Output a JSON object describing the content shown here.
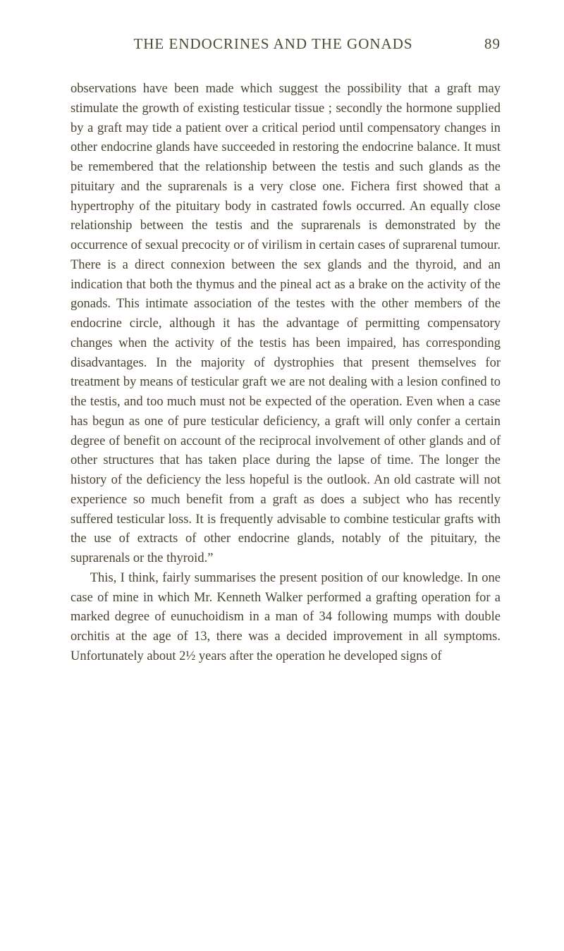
{
  "header": {
    "title": "THE ENDOCRINES AND THE GONADS",
    "page_number": "89"
  },
  "body": {
    "paragraph1": "observations have been made which suggest the possibility that a graft may stimulate the growth of existing testicular tissue ; secondly the hormone supplied by a graft may tide a patient over a critical period until compensatory changes in other endocrine glands have succeeded in restoring the endocrine balance. It must be remembered that the relationship between the testis and such glands as the pituitary and the suprarenals is a very close one. Fichera first showed that a hypertrophy of the pituitary body in castrated fowls occurred. An equally close relationship between the testis and the suprarenals is demonstrated by the occurrence of sexual precocity or of virilism in certain cases of suprarenal tumour. There is a direct connexion between the sex glands and the thyroid, and an indication that both the thymus and the pineal act as a brake on the activity of the gonads. This intimate association of the testes with the other members of the endocrine circle, although it has the advantage of permitting compensatory changes when the activity of the testis has been impaired, has cor­responding disadvantages. In the majority of dystrophies that present themselves for treatment by means of testicular graft we are not dealing with a lesion confined to the testis, and too much must not be expected of the operation. Even when a case has begun as one of pure testicular deficiency, a graft will only confer a certain degree of benefit on account of the reciprocal involvement of other glands and of other structures that has taken place during the lapse of time. The longer the history of the deficiency the less hopeful is the outlook. An old castrate will not experience so much benefit from a graft as does a subject who has recently suffered testicular loss. It is frequently advisable to combine testicular grafts with the use of extracts of other endocrine glands, notably of the pituitary, the suprarenals or the thyroid.”",
    "paragraph2": "This, I think, fairly summarises the present position of our knowledge. In one case of mine in which Mr. Kenneth Walker performed a grafting operation for a marked degree of eunuchoidism in a man of 34 following mumps with double orchitis at the age of 13, there was a decided improvement in all symptoms. Unfortunately about 2½ years after the operation he developed signs of"
  },
  "styles": {
    "background_color": "#ffffff",
    "text_color": "#4a4230",
    "header_color": "#4a4a35",
    "header_fontsize": 21,
    "body_fontsize": 18.5,
    "line_height": 1.5
  }
}
